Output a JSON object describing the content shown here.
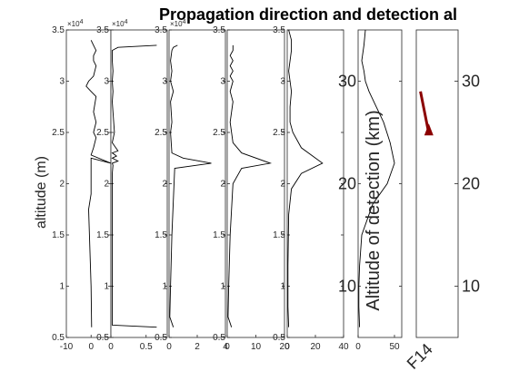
{
  "title": "Propagation direction and detection al",
  "ylabel": "altitude (m)",
  "exponent_base": "×10",
  "chart_data": [
    {
      "type": "line",
      "ylim": [
        5000,
        35000
      ],
      "xlim": [
        -10,
        8
      ],
      "xticks": [
        "-10",
        "0"
      ],
      "xtick_values": [
        -10,
        0
      ],
      "yticks": [
        "0.5",
        "1",
        "1.5",
        "2",
        "2.5",
        "3",
        "3.5"
      ],
      "ytick_values": [
        5000,
        10000,
        15000,
        20000,
        25000,
        30000,
        35000
      ],
      "ytick_exponent": "4",
      "x": [
        0.2,
        0,
        -1,
        0,
        0,
        0,
        8,
        0,
        1,
        2,
        1,
        2,
        1,
        2,
        0,
        -2,
        -1,
        1,
        2,
        1,
        1,
        2,
        1,
        0
      ],
      "y": [
        6000,
        10000,
        17500,
        19000,
        21500,
        22500,
        22000,
        22800,
        23500,
        24500,
        25000,
        26000,
        27000,
        28500,
        29000,
        29500,
        30000,
        30500,
        31500,
        32000,
        32500,
        33000,
        33500,
        34000
      ]
    },
    {
      "type": "line",
      "ylim": [
        5000,
        35000
      ],
      "xlim": [
        0,
        0.8
      ],
      "xticks": [
        "0",
        "0.5"
      ],
      "xtick_values": [
        0,
        0.5
      ],
      "yticks": [
        "0.5",
        "1",
        "1.5",
        "2",
        "2.5",
        "3",
        "3.5"
      ],
      "ytick_values": [
        5000,
        10000,
        15000,
        20000,
        25000,
        30000,
        35000
      ],
      "ytick_exponent": "4",
      "x": [
        0.65,
        0.02,
        0.02,
        0.03,
        0.02,
        0.1,
        0.02,
        0.08,
        0.02,
        0.1,
        0.02,
        0.05,
        0.02,
        0.03,
        0.02,
        0.03,
        0.02,
        0.02,
        0.1,
        0.65
      ],
      "y": [
        6000,
        6200,
        21000,
        21800,
        22000,
        22200,
        22500,
        22700,
        23000,
        23200,
        24000,
        25000,
        28000,
        29000,
        30000,
        31000,
        32000,
        33000,
        33300,
        33500
      ]
    },
    {
      "type": "line",
      "ylim": [
        5000,
        35000
      ],
      "xlim": [
        0,
        4
      ],
      "xticks": [
        "0",
        "2",
        "4"
      ],
      "xtick_values": [
        0,
        2,
        4
      ],
      "yticks": [
        "0.5",
        "1",
        "1.5",
        "2",
        "2.5",
        "3",
        "3.5"
      ],
      "ytick_values": [
        5000,
        10000,
        15000,
        20000,
        25000,
        30000,
        35000
      ],
      "ytick_exponent": "4",
      "x": [
        0.3,
        0.05,
        0.1,
        0.2,
        0.4,
        3.0,
        1.0,
        0.2,
        0.1,
        0.2,
        0.1,
        0.3,
        0.1,
        0.2,
        0.1,
        0.2,
        0.3,
        0.6
      ],
      "y": [
        6000,
        7000,
        10000,
        15000,
        21500,
        22000,
        22500,
        23000,
        25000,
        26000,
        28000,
        29000,
        30000,
        31000,
        32000,
        33000,
        33300,
        33500
      ]
    },
    {
      "type": "line",
      "ylim": [
        5000,
        35000
      ],
      "xlim": [
        0,
        20
      ],
      "xticks": [
        "0",
        "10",
        "20"
      ],
      "xtick_values": [
        0,
        10,
        20
      ],
      "yticks": [
        "0.5",
        "1",
        "1.5",
        "2",
        "2.5",
        "3",
        "3.5"
      ],
      "ytick_values": [
        5000,
        10000,
        15000,
        20000,
        25000,
        30000,
        35000
      ],
      "ytick_exponent": "",
      "x": [
        1.5,
        0.3,
        0.5,
        1,
        2,
        5,
        15,
        5,
        2,
        1,
        2,
        1,
        2,
        1,
        2,
        1,
        2,
        1,
        2,
        2
      ],
      "y": [
        6000,
        7000,
        10000,
        15000,
        20000,
        21500,
        22000,
        23000,
        24000,
        26000,
        28000,
        29000,
        30000,
        30500,
        31000,
        31500,
        32000,
        32500,
        33000,
        33500
      ]
    },
    {
      "type": "line",
      "ylim": [
        5000,
        35000
      ],
      "xlim": [
        0,
        40
      ],
      "xticks": [
        "0",
        "20",
        "40"
      ],
      "xtick_values": [
        0,
        20,
        40
      ],
      "yticks": [
        "0.5",
        "1",
        "1.5",
        "2",
        "2.5",
        "3",
        "3.5"
      ],
      "ytick_values": [
        5000,
        10000,
        15000,
        20000,
        25000,
        30000,
        35000
      ],
      "ytick_exponent": "",
      "x": [
        1,
        0.5,
        0.5,
        1,
        3,
        10,
        25,
        10,
        4,
        2,
        2,
        3,
        2,
        1,
        2,
        3,
        3,
        1
      ],
      "y": [
        6000,
        8000,
        12000,
        17000,
        19500,
        21000,
        22000,
        23500,
        25000,
        26000,
        27500,
        29000,
        30000,
        31000,
        32000,
        33000,
        34000,
        35000
      ]
    },
    {
      "type": "line",
      "ylim": [
        5000,
        35000
      ],
      "xlim": [
        0,
        60
      ],
      "xticks": [
        "0",
        "50"
      ],
      "xtick_values": [
        0,
        50
      ],
      "yticks": [
        "10",
        "20",
        "30"
      ],
      "ytick_values": [
        10000,
        20000,
        30000
      ],
      "ytick_exponent": "",
      "ylabel": "Altitude of detection (km)",
      "x": [
        2,
        1,
        1,
        2,
        5,
        20,
        40,
        50,
        44,
        35,
        25,
        15,
        10,
        8,
        5,
        8,
        10
      ],
      "y": [
        6000,
        8000,
        10000,
        12000,
        15000,
        18000,
        20000,
        22000,
        24000,
        26000,
        27500,
        29000,
        30000,
        31000,
        32000,
        33500,
        35000
      ]
    },
    {
      "type": "line",
      "ylim": [
        5000,
        35000
      ],
      "xticks": [
        "F14"
      ],
      "yticks": [],
      "yticks_right": [
        "10",
        "20",
        "30"
      ],
      "ytick_values_right": [
        10000,
        20000,
        30000
      ],
      "color": "#8b0000",
      "arrow": {
        "x0": 0.1,
        "y0": 29000,
        "x1": 0.3,
        "y1": 25600
      }
    }
  ]
}
